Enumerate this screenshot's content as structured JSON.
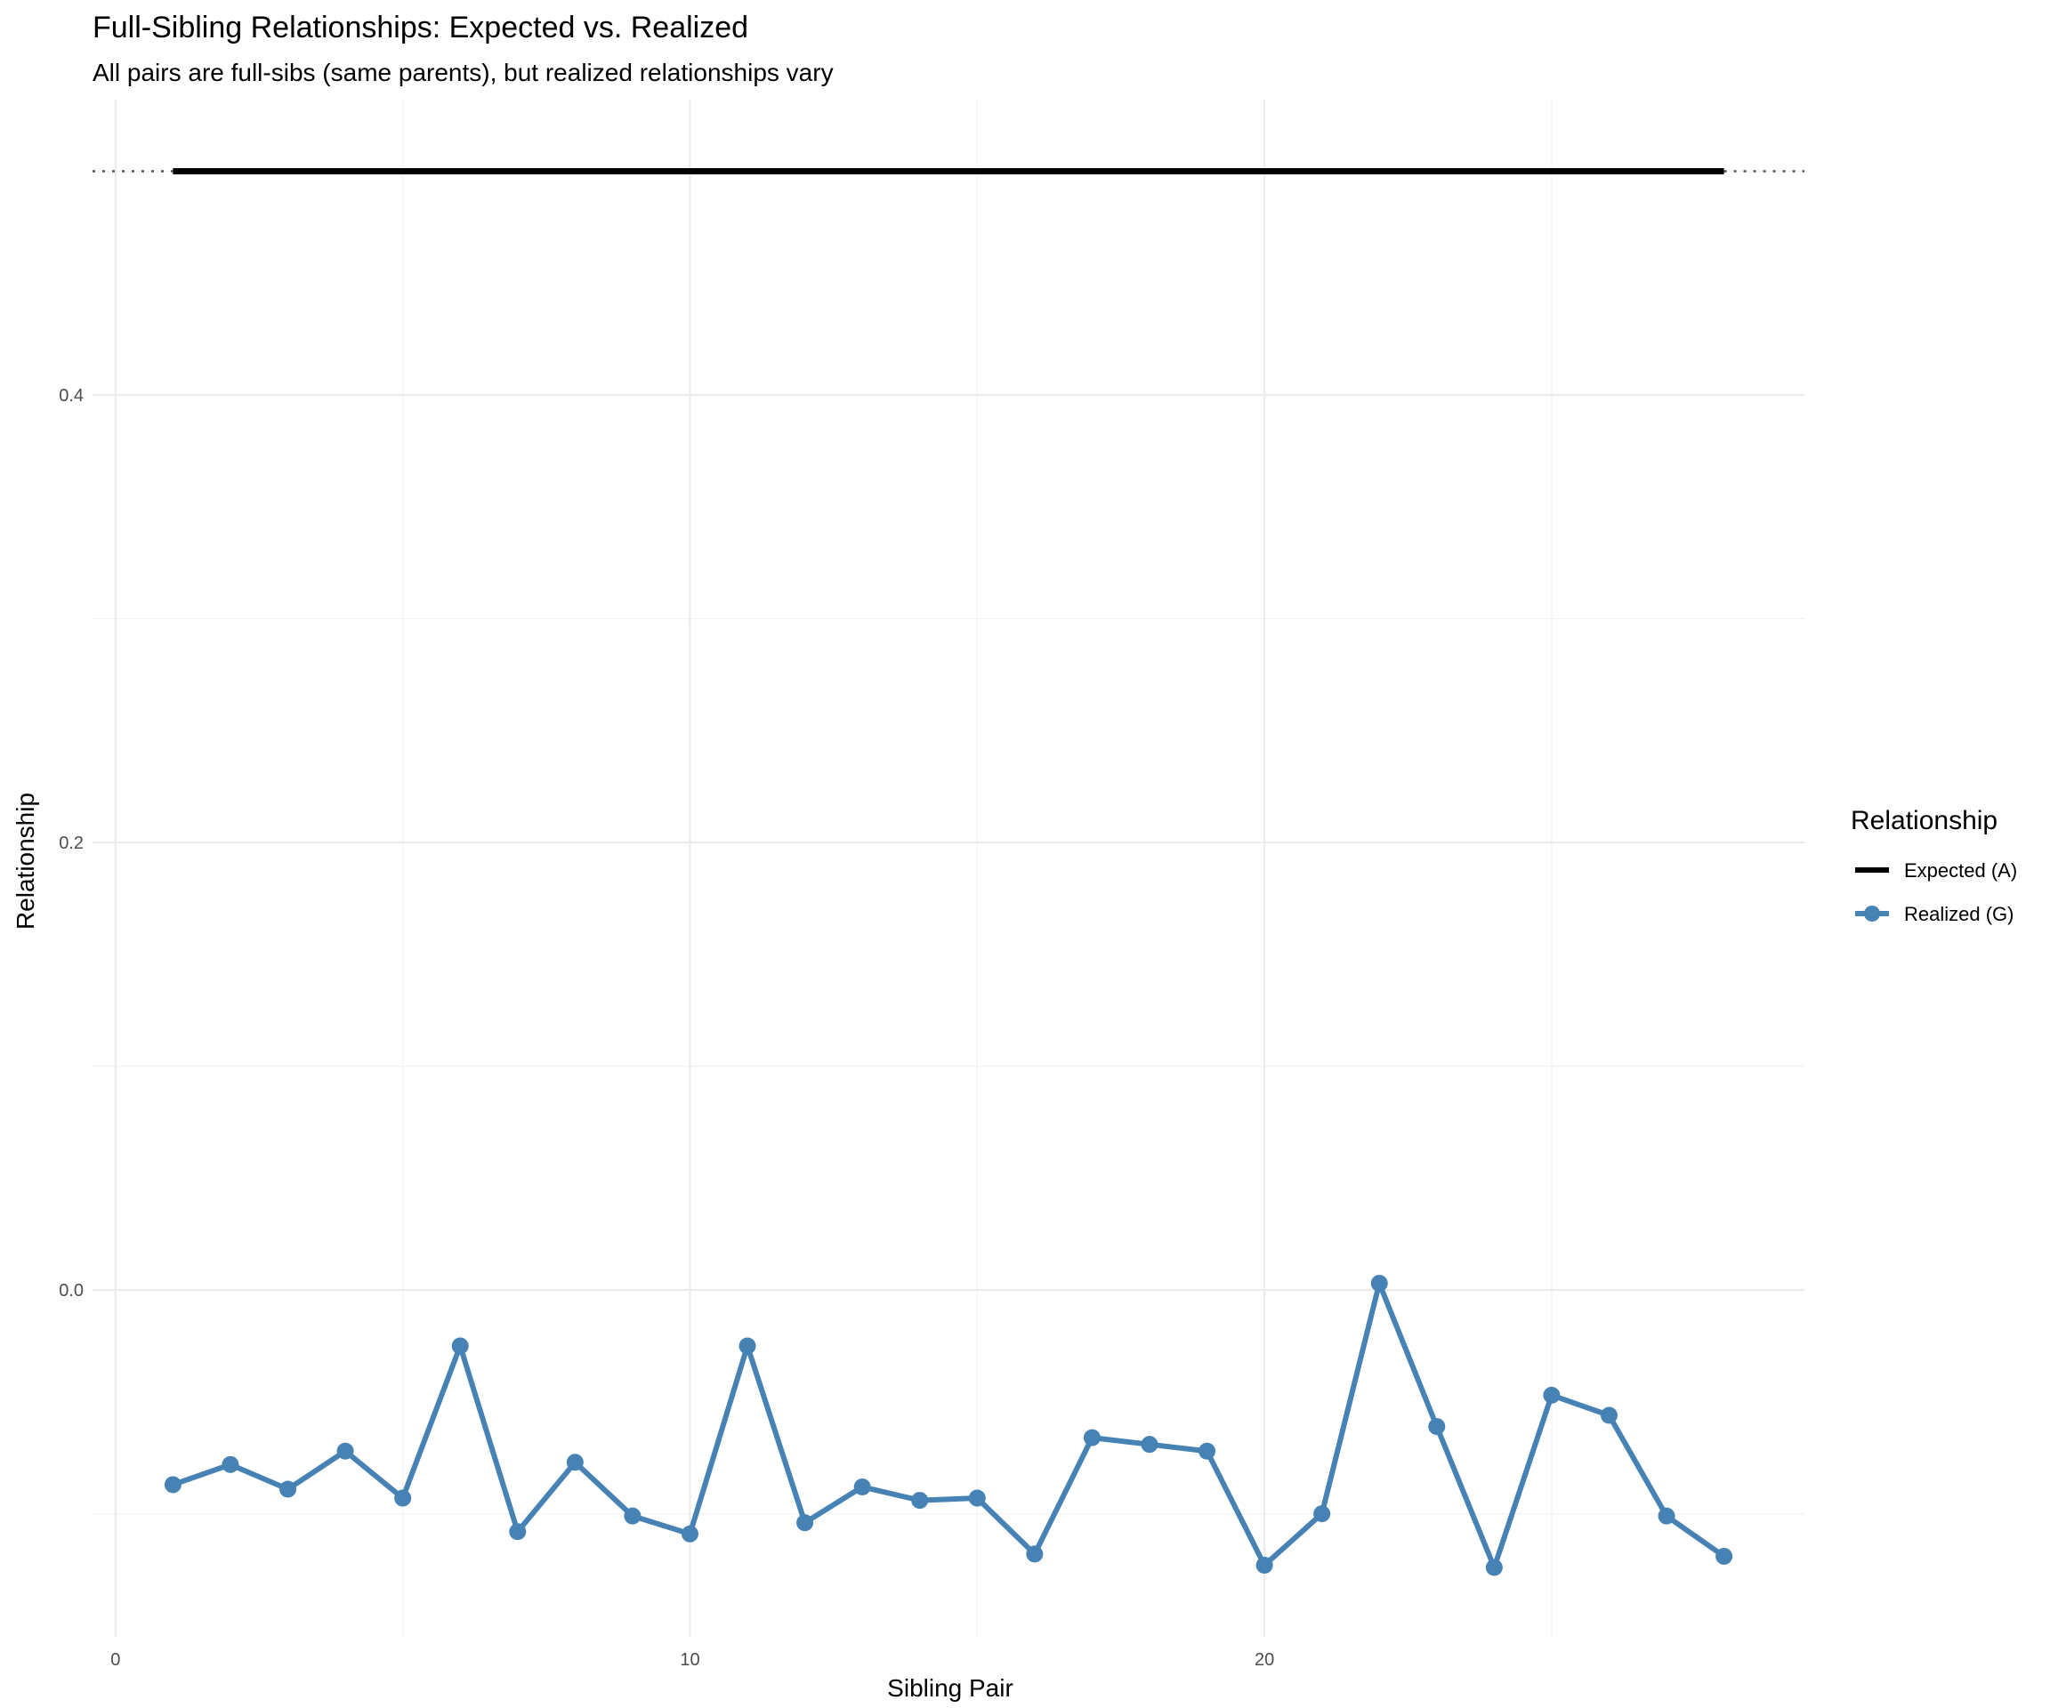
{
  "chart_data": {
    "type": "line",
    "title": "Full-Sibling Relationships: Expected vs. Realized",
    "subtitle": "All pairs are full-sibs (same parents), but realized relationships vary",
    "xlabel": "Sibling Pair",
    "ylabel": "Relationship",
    "xlim": [
      -0.4,
      29.4
    ],
    "ylim": [
      -0.155,
      0.532
    ],
    "x_ticks": [
      0,
      10,
      20
    ],
    "y_ticks": [
      0.0,
      0.2,
      0.4
    ],
    "x_tick_labels": [
      "0",
      "10",
      "20"
    ],
    "y_tick_labels": [
      "0.0",
      "0.2",
      "0.4"
    ],
    "grid": true,
    "legend": {
      "title": "Relationship",
      "position": "right",
      "entries": [
        "Expected (A)",
        "Realized (G)"
      ]
    },
    "x": [
      1,
      2,
      3,
      4,
      5,
      6,
      7,
      8,
      9,
      10,
      11,
      12,
      13,
      14,
      15,
      16,
      17,
      18,
      19,
      20,
      21,
      22,
      23,
      24,
      25,
      26,
      27,
      28
    ],
    "series": [
      {
        "name": "Expected (A)",
        "color": "#000000",
        "style": "solid line, dotted beyond data range",
        "values": [
          0.5,
          0.5,
          0.5,
          0.5,
          0.5,
          0.5,
          0.5,
          0.5,
          0.5,
          0.5,
          0.5,
          0.5,
          0.5,
          0.5,
          0.5,
          0.5,
          0.5,
          0.5,
          0.5,
          0.5,
          0.5,
          0.5,
          0.5,
          0.5,
          0.5,
          0.5,
          0.5,
          0.5
        ]
      },
      {
        "name": "Realized (G)",
        "color": "#4682b4",
        "style": "line with points",
        "values": [
          -0.087,
          -0.078,
          -0.089,
          -0.072,
          -0.093,
          -0.025,
          -0.108,
          -0.077,
          -0.101,
          -0.109,
          -0.025,
          -0.104,
          -0.088,
          -0.094,
          -0.093,
          -0.118,
          -0.066,
          -0.069,
          -0.072,
          -0.123,
          -0.1,
          0.003,
          -0.061,
          -0.124,
          -0.047,
          -0.056,
          -0.101,
          -0.119
        ]
      }
    ]
  }
}
